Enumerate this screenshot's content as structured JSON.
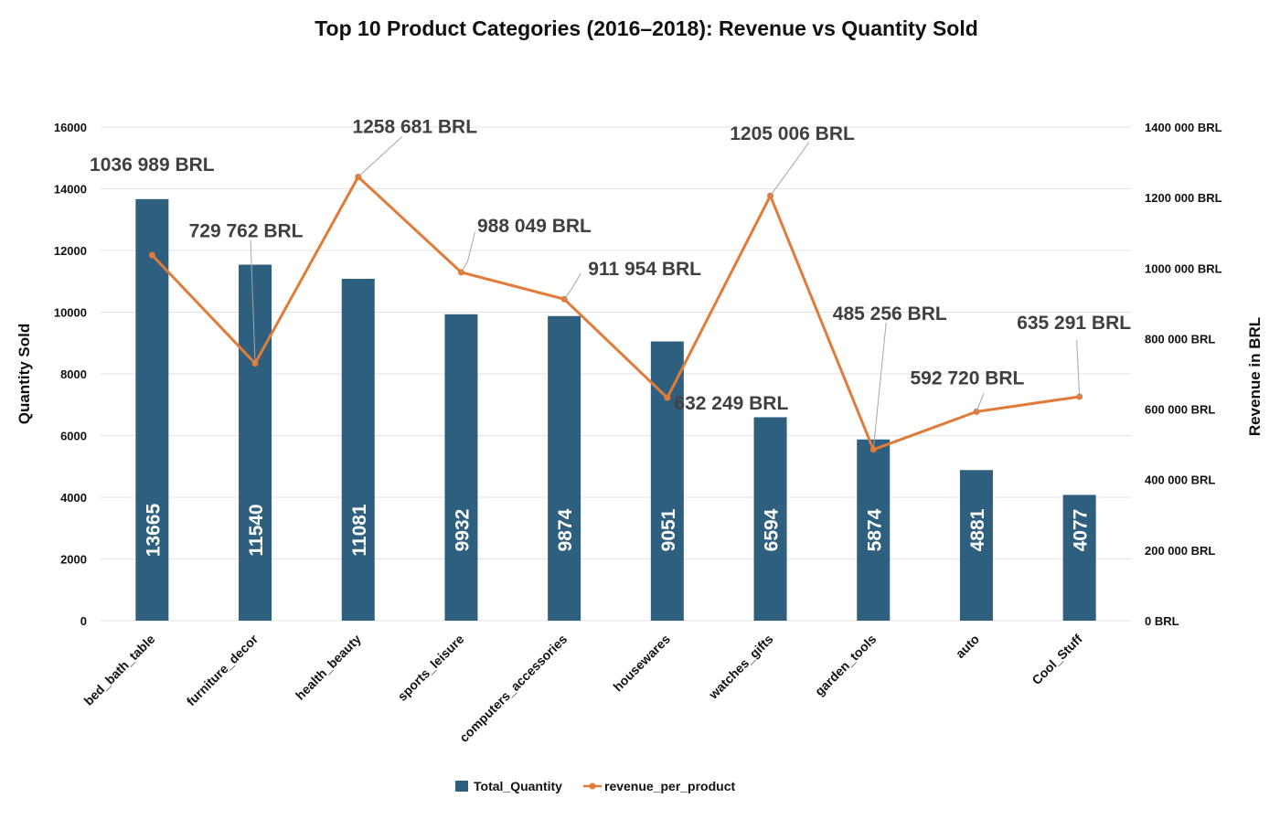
{
  "chart_data": {
    "type": "bar",
    "title": "Top 10 Product Categories (2016–2018): Revenue vs Quantity Sold",
    "categories": [
      "bed_bath_table",
      "furniture_decor",
      "health_beauty",
      "sports_leisure",
      "computers_accessories",
      "housewares",
      "watches_gifts",
      "garden_tools",
      "auto",
      "Cool_Stuff"
    ],
    "series": [
      {
        "name": "Total_Quantity",
        "type": "bar",
        "axis": "left",
        "color": "#2e5f7f",
        "values": [
          13665,
          11540,
          11081,
          9932,
          9874,
          9051,
          6594,
          5874,
          4881,
          4077
        ],
        "labels": [
          "13665",
          "11540",
          "11081",
          "9932",
          "9874",
          "9051",
          "6594",
          "5874",
          "4881",
          "4077"
        ]
      },
      {
        "name": "revenue_per_product",
        "type": "line",
        "axis": "right",
        "color": "#e07b39",
        "values": [
          1036989,
          729762,
          1258681,
          988049,
          911954,
          632249,
          1205006,
          485256,
          592720,
          635291
        ],
        "labels": [
          "1036 989 BRL",
          "729 762 BRL",
          "1258 681 BRL",
          "988 049 BRL",
          "911 954 BRL",
          "632 249 BRL",
          "1205 006 BRL",
          "485 256 BRL",
          "592 720 BRL",
          "635 291 BRL"
        ]
      }
    ],
    "ylabel": "Quantity Sold",
    "y2label": "Revenue in BRL",
    "ylim": [
      0,
      16000
    ],
    "y2lim": [
      0,
      1400000
    ],
    "yticks": [
      "0",
      "2000",
      "4000",
      "6000",
      "8000",
      "10000",
      "12000",
      "14000",
      "16000"
    ],
    "y2ticks": [
      "0 BRL",
      "200 000 BRL",
      "400 000 BRL",
      "600 000 BRL",
      "800 000 BRL",
      "1000 000 BRL",
      "1200 000 BRL",
      "1400 000 BRL"
    ],
    "grid": true,
    "legend": "bottom"
  }
}
